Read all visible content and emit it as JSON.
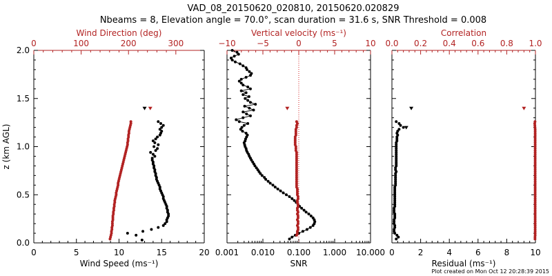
{
  "title": {
    "line1": "VAD_08_20150620_020810, 20150620.020829",
    "line2": "Nbeams = 8, Elevation angle = 70.0°, scan duration = 31.6 s, SNR Threshold = 0.008"
  },
  "footer": "Plot created on Mon Oct 12 20:28:39 2015",
  "colors": {
    "primary": "#000000",
    "secondary": "#b22222",
    "reference_line": "#d32020"
  },
  "chart_data": [
    {
      "type": "scatter",
      "ylabel": "z (km AGL)",
      "ylim": [
        0,
        2
      ],
      "yticks": [
        "0.0",
        "0.5",
        "1.0",
        "1.5",
        "2.0"
      ],
      "bottom_axis": {
        "label": "Wind Speed (ms⁻¹)",
        "lim": [
          0,
          20
        ],
        "ticks": [
          "0",
          "5",
          "10",
          "15",
          "20"
        ],
        "color": "#000000"
      },
      "top_axis": {
        "label": "Wind Direction (deg)",
        "lim": [
          0,
          360
        ],
        "ticks": [
          "0",
          "100",
          "200",
          "300"
        ],
        "color": "#b22222"
      },
      "series": [
        {
          "axis": "bottom",
          "color": "#000000",
          "marker": "dot",
          "y": [
            0.03,
            0.08,
            0.1,
            0.12,
            0.14,
            0.16,
            0.18,
            0.2,
            0.22,
            0.24,
            0.26,
            0.28,
            0.3,
            0.32,
            0.34,
            0.36,
            0.38,
            0.4,
            0.42,
            0.44,
            0.46,
            0.48,
            0.5,
            0.52,
            0.54,
            0.56,
            0.58,
            0.6,
            0.62,
            0.64,
            0.66,
            0.68,
            0.7,
            0.72,
            0.74,
            0.76,
            0.78,
            0.8,
            0.82,
            0.84,
            0.86,
            0.88,
            0.9,
            0.92,
            0.94,
            0.96,
            0.98,
            1.0,
            1.02,
            1.04,
            1.06,
            1.08,
            1.1,
            1.12,
            1.14,
            1.16,
            1.18,
            1.2,
            1.22,
            1.24,
            1.26
          ],
          "values": [
            12.7,
            12.0,
            11.0,
            12.8,
            13.8,
            14.6,
            15.2,
            15.4,
            15.6,
            15.6,
            15.7,
            15.8,
            15.8,
            15.7,
            15.7,
            15.6,
            15.6,
            15.5,
            15.4,
            15.3,
            15.2,
            15.2,
            15.1,
            15.0,
            14.9,
            14.8,
            14.8,
            14.7,
            14.6,
            14.5,
            14.4,
            14.4,
            14.3,
            14.3,
            14.2,
            14.2,
            14.1,
            14.1,
            14.0,
            14.0,
            13.9,
            13.9,
            14.2,
            14.0,
            13.7,
            14.3,
            14.5,
            14.1,
            14.6,
            14.2,
            14.0,
            14.3,
            14.5,
            14.8,
            14.9,
            15.0,
            14.8,
            15.0,
            15.2,
            14.9,
            14.6
          ]
        },
        {
          "axis": "top",
          "color": "#b22222",
          "marker": "dot",
          "y": [
            0.04,
            0.06,
            0.08,
            0.1,
            0.12,
            0.14,
            0.16,
            0.18,
            0.2,
            0.22,
            0.24,
            0.26,
            0.28,
            0.3,
            0.32,
            0.34,
            0.36,
            0.38,
            0.4,
            0.42,
            0.44,
            0.46,
            0.48,
            0.5,
            0.52,
            0.54,
            0.56,
            0.58,
            0.6,
            0.62,
            0.64,
            0.66,
            0.68,
            0.7,
            0.72,
            0.74,
            0.76,
            0.78,
            0.8,
            0.82,
            0.84,
            0.86,
            0.88,
            0.9,
            0.92,
            0.94,
            0.96,
            0.98,
            1.0,
            1.02,
            1.04,
            1.06,
            1.08,
            1.1,
            1.12,
            1.14,
            1.16,
            1.18,
            1.2,
            1.22,
            1.24,
            1.26
          ],
          "values": [
            161,
            162,
            163,
            164,
            164,
            165,
            165,
            166,
            166,
            166,
            167,
            167,
            167,
            168,
            168,
            169,
            169,
            170,
            170,
            171,
            171,
            172,
            173,
            174,
            174,
            175,
            176,
            177,
            178,
            178,
            179,
            180,
            181,
            182,
            183,
            184,
            185,
            186,
            187,
            188,
            189,
            190,
            191,
            192,
            193,
            194,
            195,
            196,
            197,
            198,
            198,
            199,
            199,
            200,
            200,
            201,
            201,
            202,
            203,
            204,
            205,
            205
          ]
        },
        {
          "axis": "top",
          "color": "#b22222",
          "marker": "triangle",
          "y": [
            1.4
          ],
          "values": [
            246
          ]
        },
        {
          "axis": "bottom",
          "color": "#000000",
          "marker": "triangle",
          "y": [
            1.4
          ],
          "values": [
            13.0
          ]
        }
      ]
    },
    {
      "type": "line",
      "ylim": [
        0,
        2
      ],
      "bottom_axis": {
        "label": "SNR",
        "lim": [
          0.001,
          10
        ],
        "scale": "log",
        "ticks": [
          "0.001",
          "0.010",
          "0.100",
          "1.000",
          "10.000"
        ],
        "color": "#000000"
      },
      "top_axis": {
        "label": "Vertical velocity (ms⁻¹)",
        "lim": [
          -10,
          10
        ],
        "ticks": [
          "−10",
          "−5",
          "0",
          "5",
          "10"
        ],
        "color": "#b22222"
      },
      "reference_line": {
        "axis": "top",
        "value": 0
      },
      "series": [
        {
          "axis": "bottom",
          "color": "#000000",
          "marker": "dot",
          "y": [
            0.04,
            0.06,
            0.08,
            0.1,
            0.12,
            0.14,
            0.16,
            0.18,
            0.2,
            0.22,
            0.24,
            0.26,
            0.28,
            0.3,
            0.32,
            0.34,
            0.36,
            0.38,
            0.4,
            0.42,
            0.44,
            0.46,
            0.48,
            0.5,
            0.52,
            0.54,
            0.56,
            0.58,
            0.6,
            0.62,
            0.64,
            0.66,
            0.68,
            0.7,
            0.72,
            0.74,
            0.76,
            0.78,
            0.8,
            0.82,
            0.84,
            0.86,
            0.88,
            0.9,
            0.92,
            0.94,
            0.96,
            0.98,
            1.0,
            1.02,
            1.04,
            1.06,
            1.08,
            1.1,
            1.12,
            1.14,
            1.16,
            1.18,
            1.2,
            1.22,
            1.24,
            1.26,
            1.28,
            1.3,
            1.32,
            1.34,
            1.36,
            1.38,
            1.4,
            1.42,
            1.44,
            1.46,
            1.48,
            1.5,
            1.52,
            1.54,
            1.56,
            1.58,
            1.6,
            1.62,
            1.64,
            1.66,
            1.68,
            1.7,
            1.72,
            1.74,
            1.76,
            1.78,
            1.8,
            1.82,
            1.84,
            1.86,
            1.88,
            1.9,
            1.92,
            1.94,
            1.96,
            1.98,
            2.0
          ],
          "values": [
            0.055,
            0.065,
            0.08,
            0.1,
            0.13,
            0.17,
            0.21,
            0.25,
            0.27,
            0.28,
            0.27,
            0.25,
            0.22,
            0.19,
            0.16,
            0.14,
            0.12,
            0.105,
            0.095,
            0.085,
            0.075,
            0.065,
            0.055,
            0.045,
            0.037,
            0.031,
            0.026,
            0.022,
            0.019,
            0.016,
            0.014,
            0.012,
            0.011,
            0.0095,
            0.0085,
            0.0078,
            0.0072,
            0.0066,
            0.006,
            0.0056,
            0.0052,
            0.0048,
            0.0045,
            0.0042,
            0.004,
            0.0037,
            0.0035,
            0.0034,
            0.0032,
            0.0031,
            0.003,
            0.0032,
            0.0033,
            0.0035,
            0.0037,
            0.0034,
            0.0027,
            0.0024,
            0.0026,
            0.003,
            0.0038,
            0.0022,
            0.0018,
            0.0028,
            0.0045,
            0.0035,
            0.0028,
            0.0055,
            0.0042,
            0.0031,
            0.0062,
            0.0045,
            0.0038,
            0.0032,
            0.0041,
            0.0028,
            0.0034,
            0.0025,
            0.0045,
            0.0038,
            0.0028,
            0.0025,
            0.0022,
            0.0025,
            0.0034,
            0.0045,
            0.0048,
            0.0042,
            0.0036,
            0.0034,
            0.0028,
            0.0023,
            0.0017,
            0.0014,
            0.0013,
            0.0016,
            0.0021,
            0.0019,
            0.0014
          ]
        },
        {
          "axis": "top",
          "color": "#b22222",
          "marker": "dot",
          "y": [
            0.08,
            0.1,
            0.12,
            0.14,
            0.16,
            0.18,
            0.2,
            0.22,
            0.24,
            0.26,
            0.28,
            0.3,
            0.32,
            0.34,
            0.36,
            0.38,
            0.4,
            0.42,
            0.44,
            0.46,
            0.48,
            0.5,
            0.52,
            0.54,
            0.56,
            0.58,
            0.6,
            0.62,
            0.64,
            0.66,
            0.68,
            0.7,
            0.72,
            0.74,
            0.76,
            0.78,
            0.8,
            0.82,
            0.84,
            0.86,
            0.88,
            0.9,
            0.92,
            0.94,
            0.96,
            0.98,
            1.0,
            1.02,
            1.04,
            1.06,
            1.08,
            1.1,
            1.12,
            1.14,
            1.16,
            1.18,
            1.2,
            1.22,
            1.24,
            1.26
          ],
          "values": [
            -0.3,
            -0.2,
            -0.2,
            -0.1,
            -0.1,
            -0.2,
            -0.1,
            -0.1,
            -0.2,
            -0.1,
            -0.1,
            -0.2,
            -0.1,
            -0.2,
            -0.2,
            -0.1,
            -0.1,
            -0.2,
            -0.2,
            -0.1,
            -0.1,
            -0.2,
            -0.2,
            -0.2,
            -0.2,
            -0.3,
            -0.3,
            -0.3,
            -0.3,
            -0.3,
            -0.3,
            -0.3,
            -0.3,
            -0.3,
            -0.3,
            -0.3,
            -0.3,
            -0.3,
            -0.3,
            -0.3,
            -0.3,
            -0.3,
            -0.3,
            -0.3,
            -0.4,
            -0.4,
            -0.4,
            -0.5,
            -0.5,
            -0.5,
            -0.5,
            -0.5,
            -0.4,
            -0.4,
            -0.4,
            -0.4,
            -0.3,
            -0.3,
            -0.2,
            -0.3
          ]
        },
        {
          "axis": "top",
          "color": "#b22222",
          "marker": "triangle",
          "y": [
            1.4
          ],
          "values": [
            -1.6
          ]
        }
      ]
    },
    {
      "type": "scatter",
      "ylim": [
        0,
        2
      ],
      "bottom_axis": {
        "label": "Residual (ms⁻¹)",
        "lim": [
          0,
          10
        ],
        "ticks": [
          "0",
          "2",
          "4",
          "6",
          "8",
          "10"
        ],
        "color": "#000000"
      },
      "top_axis": {
        "label": "Correlation",
        "lim": [
          0,
          1
        ],
        "ticks": [
          "0.0",
          "0.2",
          "0.4",
          "0.6",
          "0.8",
          "1.0"
        ],
        "color": "#b22222"
      },
      "series": [
        {
          "axis": "bottom",
          "color": "#000000",
          "marker": "dot",
          "y": [
            0.04,
            0.06,
            0.08,
            0.1,
            0.12,
            0.14,
            0.16,
            0.18,
            0.2,
            0.22,
            0.24,
            0.26,
            0.28,
            0.3,
            0.32,
            0.34,
            0.36,
            0.38,
            0.4,
            0.42,
            0.44,
            0.46,
            0.48,
            0.5,
            0.52,
            0.54,
            0.56,
            0.58,
            0.6,
            0.62,
            0.64,
            0.66,
            0.68,
            0.7,
            0.72,
            0.74,
            0.76,
            0.78,
            0.8,
            0.82,
            0.84,
            0.86,
            0.88,
            0.9,
            0.92,
            0.94,
            0.96,
            0.98,
            1.0,
            1.02,
            1.04,
            1.06,
            1.08,
            1.1,
            1.12,
            1.14,
            1.16,
            1.18,
            1.2,
            1.22,
            1.24,
            1.26
          ],
          "values": [
            0.3,
            0.45,
            0.35,
            0.2,
            0.15,
            0.15,
            0.2,
            0.2,
            0.15,
            0.15,
            0.15,
            0.2,
            0.2,
            0.2,
            0.15,
            0.15,
            0.15,
            0.2,
            0.2,
            0.2,
            0.2,
            0.2,
            0.2,
            0.2,
            0.2,
            0.2,
            0.2,
            0.2,
            0.25,
            0.25,
            0.25,
            0.25,
            0.25,
            0.25,
            0.25,
            0.3,
            0.25,
            0.25,
            0.3,
            0.3,
            0.3,
            0.3,
            0.3,
            0.3,
            0.3,
            0.3,
            0.3,
            0.3,
            0.3,
            0.3,
            0.3,
            0.35,
            0.35,
            0.35,
            0.4,
            0.35,
            0.4,
            0.5,
            0.8,
            0.6,
            0.5,
            0.3
          ]
        },
        {
          "axis": "bottom",
          "color": "#000000",
          "marker": "triangle",
          "y": [
            1.2,
            1.4
          ],
          "values": [
            1.0,
            1.35
          ]
        },
        {
          "axis": "top",
          "color": "#b22222",
          "marker": "dot",
          "y": [
            0.04,
            0.06,
            0.08,
            0.1,
            0.12,
            0.14,
            0.16,
            0.18,
            0.2,
            0.22,
            0.24,
            0.26,
            0.28,
            0.3,
            0.32,
            0.34,
            0.36,
            0.38,
            0.4,
            0.42,
            0.44,
            0.46,
            0.48,
            0.5,
            0.52,
            0.54,
            0.56,
            0.58,
            0.6,
            0.62,
            0.64,
            0.66,
            0.68,
            0.7,
            0.72,
            0.74,
            0.76,
            0.78,
            0.8,
            0.82,
            0.84,
            0.86,
            0.88,
            0.9,
            0.92,
            0.94,
            0.96,
            0.98,
            1.0,
            1.02,
            1.04,
            1.06,
            1.08,
            1.1,
            1.12,
            1.14,
            1.16,
            1.18,
            1.2,
            1.22,
            1.24,
            1.26
          ],
          "values": [
            0.997,
            0.997,
            0.998,
            0.998,
            0.998,
            0.998,
            0.998,
            0.998,
            0.998,
            0.998,
            0.998,
            0.998,
            0.998,
            0.998,
            0.998,
            0.998,
            0.998,
            0.998,
            0.998,
            0.998,
            0.998,
            0.998,
            0.998,
            0.998,
            0.998,
            0.998,
            0.998,
            0.998,
            0.998,
            0.998,
            0.998,
            0.998,
            0.998,
            0.998,
            0.998,
            0.998,
            0.998,
            0.998,
            0.998,
            0.998,
            0.998,
            0.998,
            0.998,
            0.998,
            0.998,
            0.998,
            0.998,
            0.998,
            0.998,
            0.998,
            0.998,
            0.998,
            0.998,
            0.998,
            0.998,
            0.998,
            0.998,
            0.998,
            0.997,
            0.996,
            0.995,
            0.997
          ]
        },
        {
          "axis": "top",
          "color": "#b22222",
          "marker": "triangle",
          "y": [
            1.4
          ],
          "values": [
            0.92
          ]
        }
      ]
    }
  ]
}
